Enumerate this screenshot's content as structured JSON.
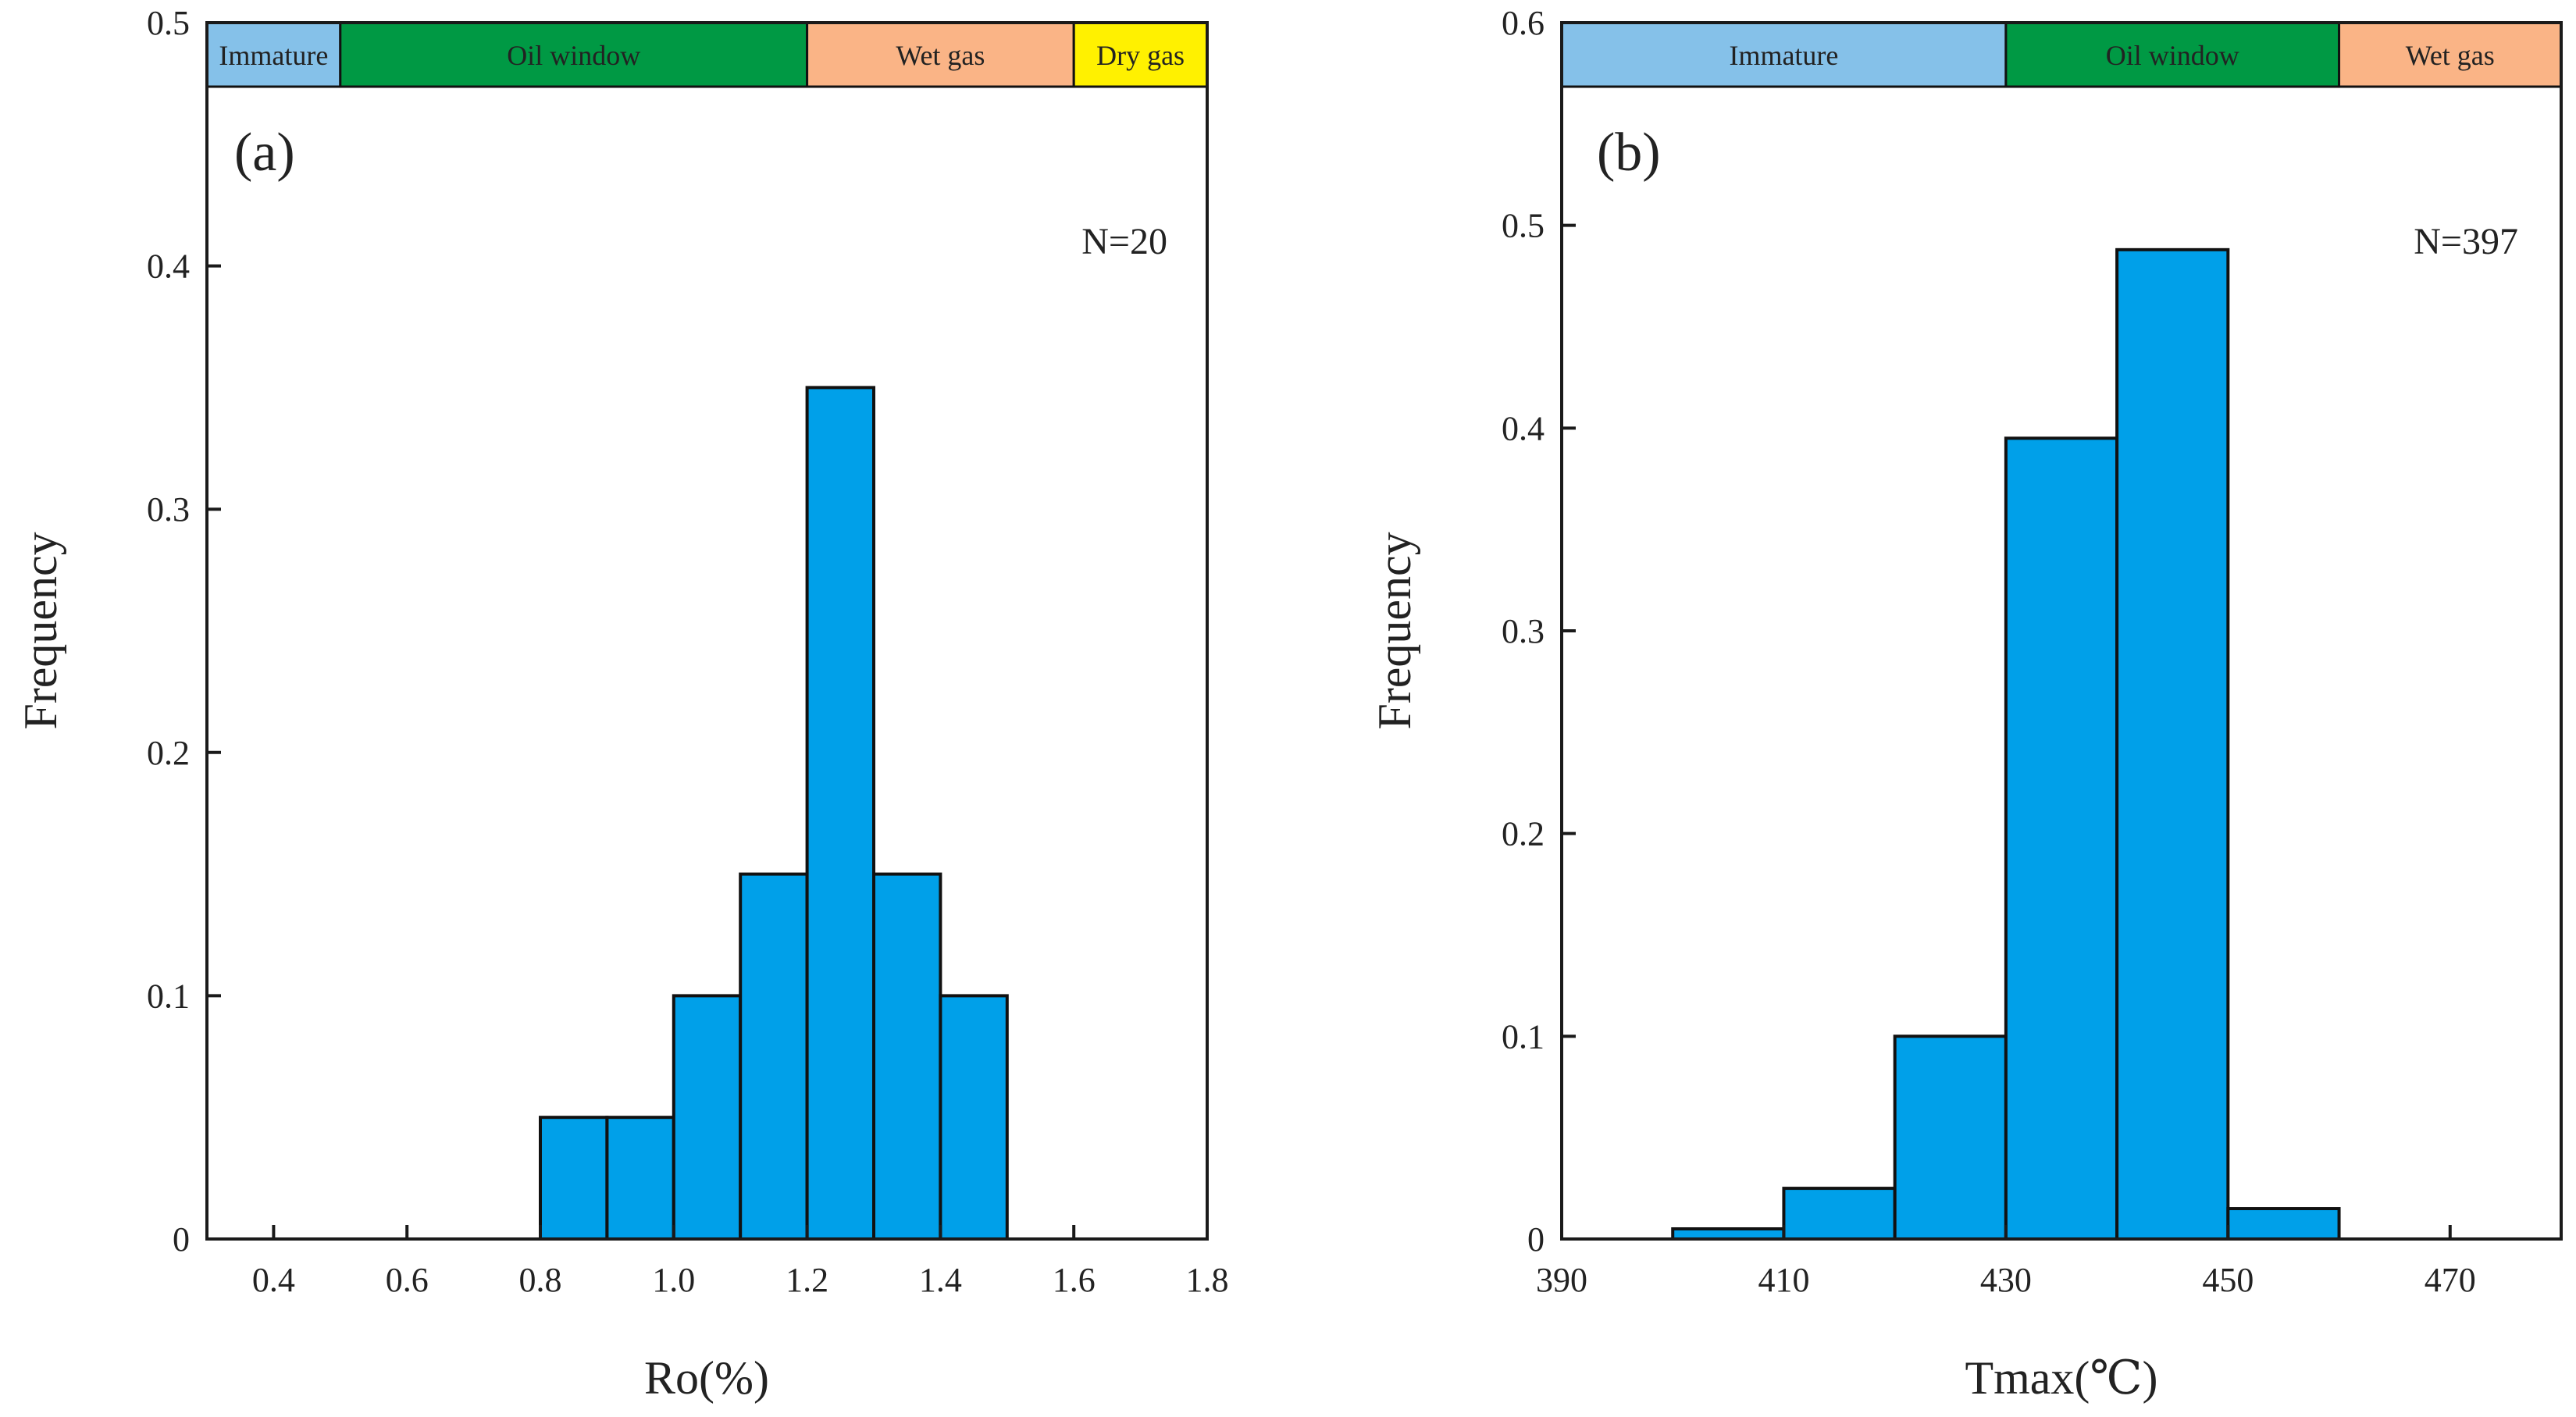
{
  "chart_data": [
    {
      "type": "bar",
      "panel_label": "(a)",
      "xlabel": "Ro(%)",
      "ylabel": "Frequency",
      "xlim": [
        0.3,
        1.8
      ],
      "ylim": [
        0,
        0.5
      ],
      "xticks": [
        0.4,
        0.6,
        0.8,
        1.0,
        1.2,
        1.4,
        1.6,
        1.8
      ],
      "xtick_labels": [
        "0.4",
        "0.6",
        "0.8",
        "1.0",
        "1.2",
        "1.4",
        "1.6",
        "1.8"
      ],
      "yticks": [
        0,
        0.1,
        0.2,
        0.3,
        0.4,
        0.5
      ],
      "ytick_labels": [
        "0",
        "0.1",
        "0.2",
        "0.3",
        "0.4",
        "0.5"
      ],
      "annotation": "N=20",
      "bar_color": "#00A0E9",
      "bins": [
        {
          "from": 0.8,
          "to": 0.9,
          "value": 0.05
        },
        {
          "from": 0.9,
          "to": 1.0,
          "value": 0.05
        },
        {
          "from": 1.0,
          "to": 1.1,
          "value": 0.1
        },
        {
          "from": 1.1,
          "to": 1.2,
          "value": 0.15
        },
        {
          "from": 1.2,
          "to": 1.3,
          "value": 0.35
        },
        {
          "from": 1.3,
          "to": 1.4,
          "value": 0.15
        },
        {
          "from": 1.4,
          "to": 1.5,
          "value": 0.1
        }
      ],
      "zones": [
        {
          "label": "Immature",
          "from": 0.3,
          "to": 0.5,
          "color": "#85C1E9"
        },
        {
          "label": "Oil window",
          "from": 0.5,
          "to": 1.2,
          "color": "#009944"
        },
        {
          "label": "Wet gas",
          "from": 1.2,
          "to": 1.6,
          "color": "#FAB486"
        },
        {
          "label": "Dry gas",
          "from": 1.6,
          "to": 1.8,
          "color": "#FFF100"
        }
      ]
    },
    {
      "type": "bar",
      "panel_label": "(b)",
      "xlabel": "Tmax(℃)",
      "ylabel": "Frequency",
      "xlim": [
        390,
        480
      ],
      "ylim": [
        0,
        0.6
      ],
      "xticks": [
        390,
        410,
        430,
        450,
        470
      ],
      "xtick_labels": [
        "390",
        "410",
        "430",
        "450",
        "470"
      ],
      "yticks": [
        0,
        0.1,
        0.2,
        0.3,
        0.4,
        0.5,
        0.6
      ],
      "ytick_labels": [
        "0",
        "0.1",
        "0.2",
        "0.3",
        "0.4",
        "0.5",
        "0.6"
      ],
      "annotation": "N=397",
      "bar_color": "#00A0E9",
      "bins": [
        {
          "from": 400,
          "to": 410,
          "value": 0.005
        },
        {
          "from": 410,
          "to": 420,
          "value": 0.025
        },
        {
          "from": 420,
          "to": 430,
          "value": 0.1
        },
        {
          "from": 430,
          "to": 440,
          "value": 0.395
        },
        {
          "from": 440,
          "to": 450,
          "value": 0.488
        },
        {
          "from": 450,
          "to": 460,
          "value": 0.015
        }
      ],
      "zones": [
        {
          "label": "Immature",
          "from": 390,
          "to": 430,
          "color": "#85C1E9"
        },
        {
          "label": "Oil window",
          "from": 430,
          "to": 460,
          "color": "#009944"
        },
        {
          "label": "Wet gas",
          "from": 460,
          "to": 480,
          "color": "#FAB486"
        }
      ]
    }
  ]
}
